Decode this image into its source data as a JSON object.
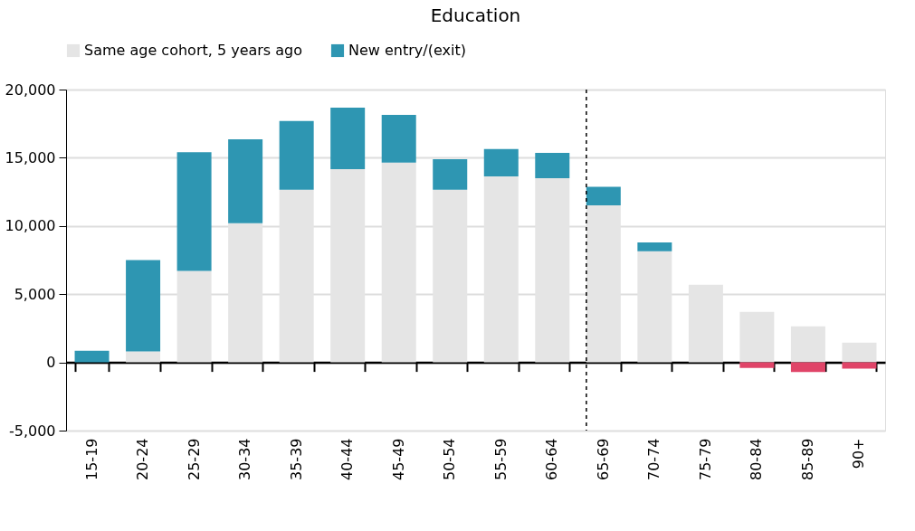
{
  "chart_data": {
    "type": "bar",
    "title": "Education",
    "stacked": true,
    "categories": [
      "15-19",
      "20-24",
      "25-29",
      "30-34",
      "35-39",
      "40-44",
      "45-49",
      "50-54",
      "55-59",
      "60-64",
      "65-69",
      "70-74",
      "75-79",
      "80-84",
      "85-89",
      "90+"
    ],
    "series": [
      {
        "name": "Same age cohort, 5 years ago",
        "color": "#e5e5e5",
        "values": [
          0,
          800,
          6700,
          10200,
          12650,
          14170,
          14640,
          12650,
          13640,
          13500,
          11520,
          8150,
          5700,
          3700,
          2650,
          1450
        ]
      },
      {
        "name": "New entry/(exit)",
        "color": "#2e96b2",
        "colors": [
          "#2e96b2",
          "#2e96b2",
          "#2e96b2",
          "#2e96b2",
          "#2e96b2",
          "#2e96b2",
          "#2e96b2",
          "#2e96b2",
          "#2e96b2",
          "#2e96b2",
          "#2e96b2",
          "#2e96b2",
          "#2e96b2",
          "#e04468",
          "#e04468",
          "#e04468"
        ],
        "values": [
          860,
          6700,
          8700,
          6150,
          5050,
          4500,
          3500,
          2250,
          2000,
          1850,
          1350,
          650,
          0,
          -400,
          -700,
          -450
        ]
      }
    ],
    "ylim": [
      -5000,
      20000
    ],
    "yticks": [
      {
        "value": -5000,
        "label": "-5,000"
      },
      0,
      {
        "value": 5000,
        "label": "5,000"
      },
      {
        "value": 10000,
        "label": "10,000"
      },
      {
        "value": 15000,
        "label": "15,000"
      },
      {
        "value": 20000,
        "label": "20,000"
      }
    ],
    "ref_lines": [
      {
        "axis": "x",
        "value": "65-69",
        "line_style": "dashed",
        "color": "#000000"
      }
    ],
    "grid": "y",
    "legend": "top"
  }
}
